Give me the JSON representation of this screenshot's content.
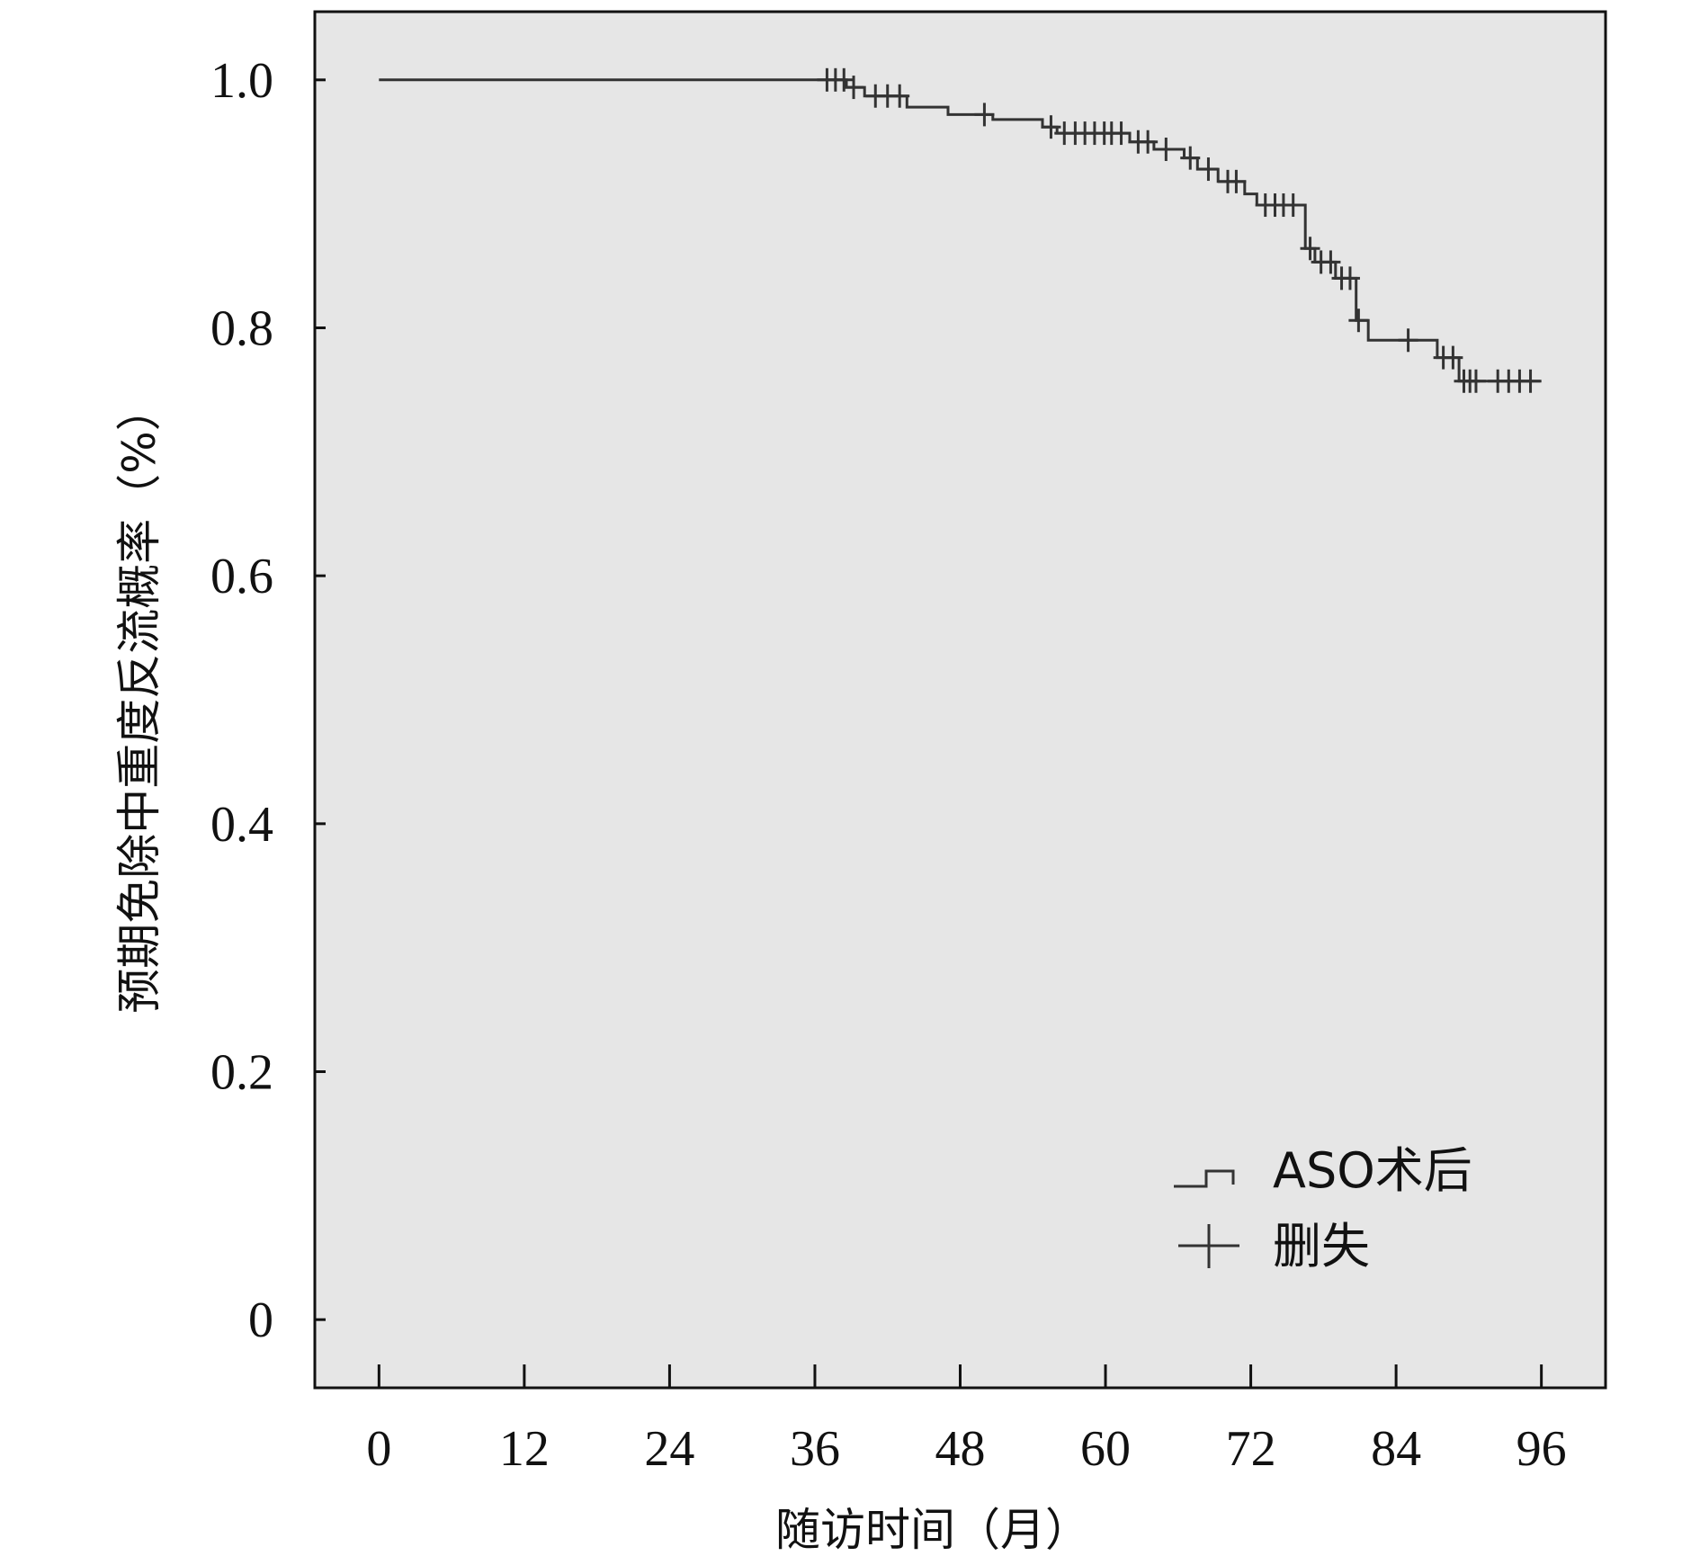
{
  "chart_data": {
    "type": "line",
    "subtype": "kaplan-meier",
    "title": "",
    "xlabel": "随访时间（月）",
    "ylabel": "预期免除中重度反流概率（%）",
    "xticks": [
      "0",
      "12",
      "24",
      "36",
      "48",
      "60",
      "72",
      "84",
      "96"
    ],
    "yticks": [
      "0",
      "0.2",
      "0.4",
      "0.6",
      "0.8",
      "1.0"
    ],
    "xlim": [
      -5.3,
      101.3
    ],
    "ylim": [
      -0.055,
      1.055
    ],
    "grid": false,
    "background": "#e6e6e6",
    "line_color": "#333333",
    "legend": {
      "position": "bottom-right",
      "entries": [
        {
          "symbol": "step",
          "label": "ASO术后"
        },
        {
          "symbol": "cross",
          "label": "删失"
        }
      ]
    },
    "series": [
      {
        "name": "ASO术后",
        "curve": [
          [
            0,
            1.0
          ],
          [
            38.6,
            1.0
          ],
          [
            38.6,
            0.994
          ],
          [
            40.1,
            0.994
          ],
          [
            40.1,
            0.987
          ],
          [
            43.6,
            0.987
          ],
          [
            43.6,
            0.978
          ],
          [
            47,
            0.978
          ],
          [
            47,
            0.972
          ],
          [
            50.7,
            0.972
          ],
          [
            50.7,
            0.968
          ],
          [
            54.8,
            0.968
          ],
          [
            54.8,
            0.962
          ],
          [
            56,
            0.962
          ],
          [
            56,
            0.957
          ],
          [
            62,
            0.957
          ],
          [
            62,
            0.95
          ],
          [
            64,
            0.95
          ],
          [
            64,
            0.944
          ],
          [
            66.5,
            0.944
          ],
          [
            66.5,
            0.937
          ],
          [
            67.6,
            0.937
          ],
          [
            67.6,
            0.928
          ],
          [
            69.3,
            0.928
          ],
          [
            69.3,
            0.918
          ],
          [
            71.5,
            0.918
          ],
          [
            71.5,
            0.908
          ],
          [
            72.5,
            0.908
          ],
          [
            72.5,
            0.899
          ],
          [
            76.5,
            0.899
          ],
          [
            76.5,
            0.864
          ],
          [
            77.3,
            0.864
          ],
          [
            77.3,
            0.853
          ],
          [
            79,
            0.853
          ],
          [
            79,
            0.84
          ],
          [
            80.7,
            0.84
          ],
          [
            80.7,
            0.806
          ],
          [
            81.7,
            0.806
          ],
          [
            81.7,
            0.79
          ],
          [
            87.4,
            0.79
          ],
          [
            87.4,
            0.776
          ],
          [
            89.2,
            0.776
          ],
          [
            89.2,
            0.757
          ],
          [
            96,
            0.757
          ]
        ],
        "censored": [
          [
            37.0,
            1.0
          ],
          [
            37.7,
            1.0
          ],
          [
            38.4,
            1.0
          ],
          [
            39.2,
            0.994
          ],
          [
            41.0,
            0.987
          ],
          [
            42.0,
            0.987
          ],
          [
            43.0,
            0.987
          ],
          [
            50.0,
            0.972
          ],
          [
            55.5,
            0.962
          ],
          [
            56.6,
            0.957
          ],
          [
            57.5,
            0.957
          ],
          [
            58.3,
            0.957
          ],
          [
            59.1,
            0.957
          ],
          [
            59.9,
            0.957
          ],
          [
            60.5,
            0.957
          ],
          [
            61.3,
            0.957
          ],
          [
            62.7,
            0.95
          ],
          [
            63.5,
            0.95
          ],
          [
            65.0,
            0.944
          ],
          [
            67.0,
            0.937
          ],
          [
            68.5,
            0.928
          ],
          [
            70.1,
            0.918
          ],
          [
            70.8,
            0.918
          ],
          [
            73.2,
            0.899
          ],
          [
            74.0,
            0.899
          ],
          [
            74.7,
            0.899
          ],
          [
            75.5,
            0.899
          ],
          [
            76.9,
            0.864
          ],
          [
            77.8,
            0.853
          ],
          [
            78.6,
            0.853
          ],
          [
            79.5,
            0.84
          ],
          [
            80.2,
            0.84
          ],
          [
            80.9,
            0.806
          ],
          [
            85.0,
            0.79
          ],
          [
            87.9,
            0.776
          ],
          [
            88.7,
            0.776
          ],
          [
            89.6,
            0.757
          ],
          [
            90.1,
            0.757
          ],
          [
            90.6,
            0.757
          ],
          [
            92.4,
            0.757
          ],
          [
            93.3,
            0.757
          ],
          [
            94.2,
            0.757
          ],
          [
            95.1,
            0.757
          ]
        ]
      }
    ]
  }
}
